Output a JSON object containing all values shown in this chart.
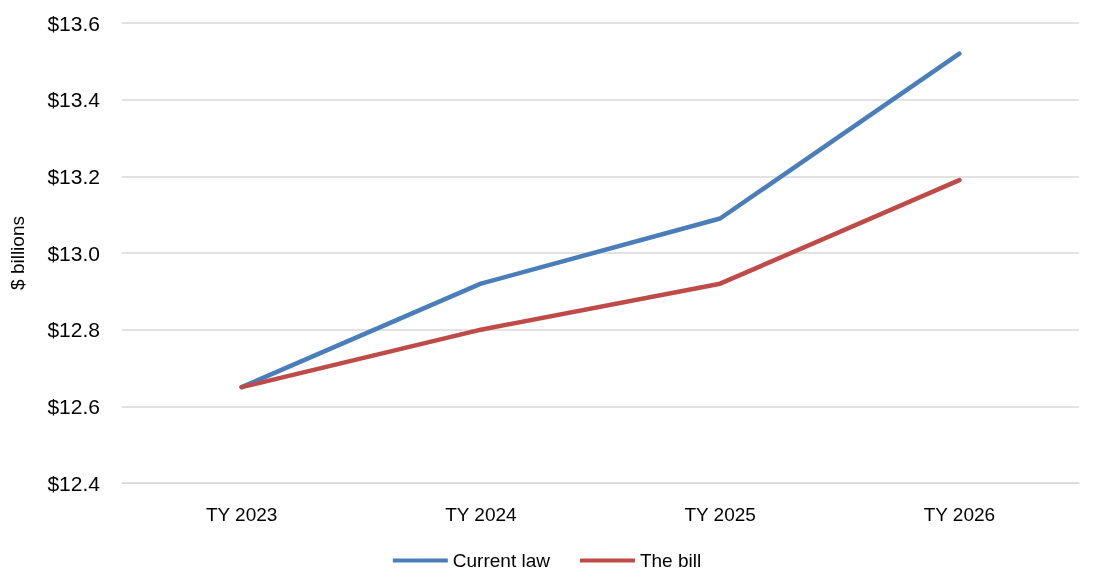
{
  "chart_data": {
    "type": "line",
    "ylabel": "$ billions",
    "categories": [
      "TY 2023",
      "TY 2024",
      "TY 2025",
      "TY 2026"
    ],
    "series": [
      {
        "name": "Current law",
        "color": "#4a7ebb",
        "values": [
          12.65,
          12.92,
          13.09,
          13.52
        ]
      },
      {
        "name": "The bill",
        "color": "#be4b48",
        "values": [
          12.65,
          12.8,
          12.92,
          13.19
        ]
      }
    ],
    "ylim": [
      12.4,
      13.6
    ],
    "yticks": [
      {
        "value": 12.4,
        "label": "$12.4"
      },
      {
        "value": 12.6,
        "label": "$12.6"
      },
      {
        "value": 12.8,
        "label": "$12.8"
      },
      {
        "value": 13.0,
        "label": "$13.0"
      },
      {
        "value": 13.2,
        "label": "$13.2"
      },
      {
        "value": 13.4,
        "label": "$13.4"
      },
      {
        "value": 13.6,
        "label": "$13.6"
      }
    ],
    "grid": "y",
    "legend": "bottom",
    "marker": "none",
    "line_style": "solid"
  }
}
